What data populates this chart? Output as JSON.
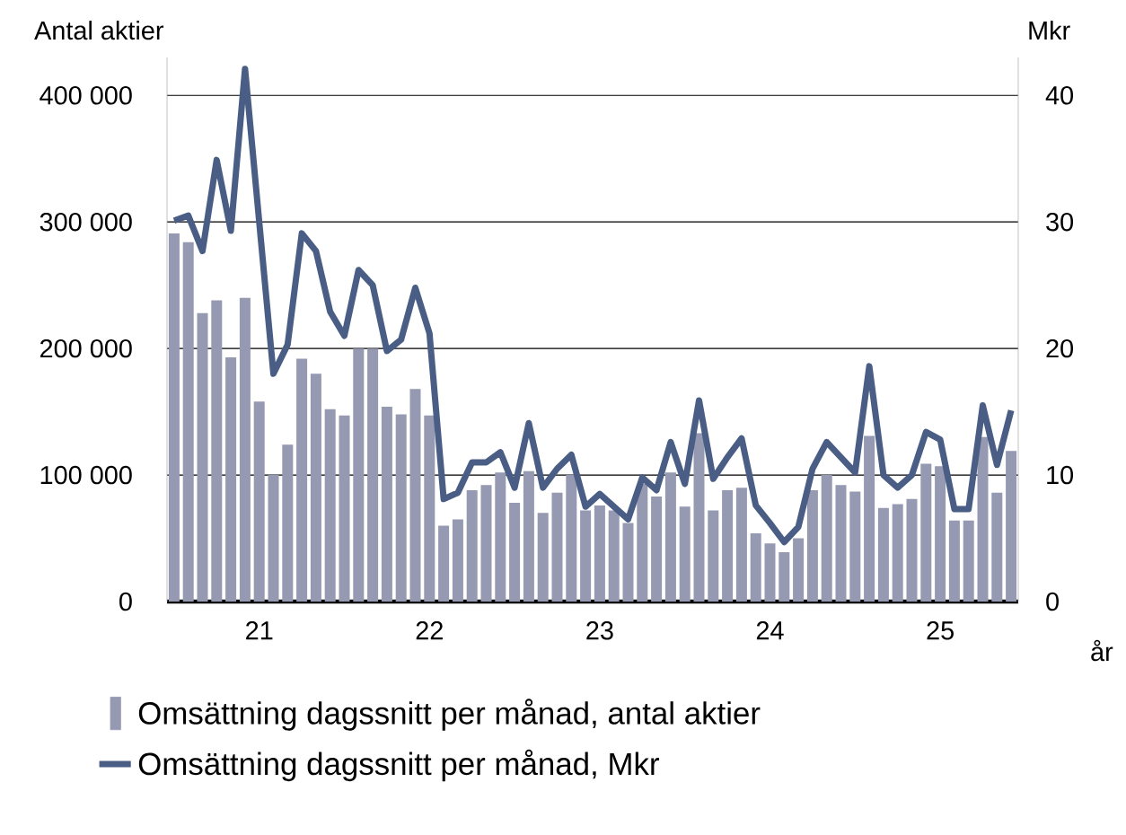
{
  "chart_data": {
    "type": "bar",
    "ylabel": "Antal aktier",
    "y2label": "Mkr",
    "xlabel": "år",
    "categories": [
      null,
      null,
      null,
      null,
      null,
      null,
      "21",
      null,
      null,
      null,
      null,
      null,
      null,
      null,
      null,
      null,
      null,
      null,
      "22",
      null,
      null,
      null,
      null,
      null,
      null,
      null,
      null,
      null,
      null,
      null,
      "23",
      null,
      null,
      null,
      null,
      null,
      null,
      null,
      null,
      null,
      null,
      null,
      "24",
      null,
      null,
      null,
      null,
      null,
      null,
      null,
      null,
      null,
      null,
      null,
      "25",
      null,
      null,
      null,
      null,
      null
    ],
    "ylim": [
      0,
      430000
    ],
    "yticks": [
      0,
      {
        "value": 100000,
        "label": "100 000"
      },
      {
        "value": 200000,
        "label": "200 000"
      },
      {
        "value": 300000,
        "label": "300 000"
      },
      {
        "value": 400000,
        "label": "400 000"
      }
    ],
    "y2lim": [
      0,
      43
    ],
    "y2ticks": [
      0,
      10,
      20,
      30,
      40
    ],
    "grid": "y",
    "legend": "bottom",
    "series": [
      {
        "name": "Omsättning dagssnitt per månad, antal aktier",
        "color": "#9599b1",
        "values": [
          291000,
          284000,
          228000,
          238000,
          193000,
          240000,
          158000,
          100000,
          124000,
          192000,
          180000,
          152000,
          147000,
          200000,
          200000,
          154000,
          148000,
          168000,
          147000,
          60000,
          65000,
          88000,
          92000,
          102000,
          78000,
          103000,
          70000,
          86000,
          100000,
          72000,
          76000,
          72000,
          62000,
          93000,
          83000,
          102000,
          75000,
          133000,
          72000,
          88000,
          90000,
          54000,
          46000,
          39000,
          50000,
          88000,
          100000,
          92000,
          87000,
          131000,
          74000,
          77000,
          81000,
          109000,
          107000,
          64000,
          64000,
          130000,
          86000,
          119000
        ]
      },
      {
        "name": "Omsättning dagssnitt per månad, Mkr",
        "type": "line",
        "axis": "y2",
        "color": "#4a5e85",
        "values": [
          30.1,
          30.5,
          27.7,
          34.9,
          29.3,
          42.1,
          30,
          18.0,
          20.3,
          29.1,
          27.7,
          22.9,
          21.0,
          26.2,
          25.0,
          19.8,
          20.7,
          24.8,
          21.2,
          8.1,
          8.6,
          11.0,
          11.0,
          11.8,
          9.0,
          14.1,
          9.0,
          10.5,
          11.6,
          7.5,
          8.5,
          7.5,
          6.5,
          9.8,
          8.8,
          12.6,
          9.3,
          15.9,
          9.7,
          11.4,
          12.9,
          7.6,
          6.2,
          4.7,
          5.9,
          10.5,
          12.6,
          11.4,
          10.2,
          18.6,
          10.0,
          9.0,
          10.0,
          13.4,
          12.8,
          7.3,
          7.3,
          15.5,
          10.8,
          15.1
        ]
      }
    ]
  }
}
